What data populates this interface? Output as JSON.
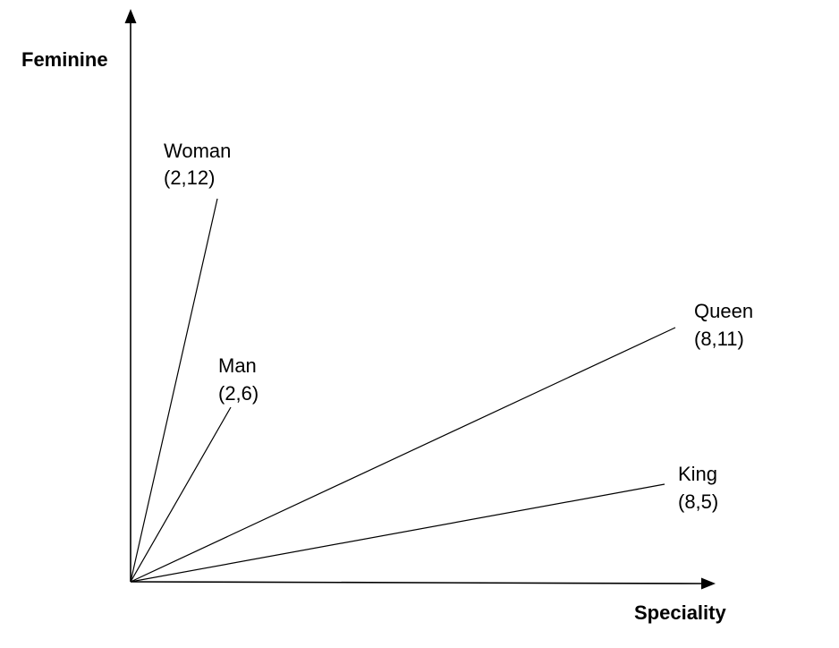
{
  "axes": {
    "y_label": "Feminine",
    "x_label": "Speciality"
  },
  "vectors": [
    {
      "name": "Woman",
      "coords": "(2,12)",
      "x": 2,
      "y": 12
    },
    {
      "name": "Man",
      "coords": "(2,6)",
      "x": 2,
      "y": 6
    },
    {
      "name": "Queen",
      "coords": "(8,11)",
      "x": 8,
      "y": 11
    },
    {
      "name": "King",
      "coords": "(8,5)",
      "x": 8,
      "y": 5
    }
  ]
}
